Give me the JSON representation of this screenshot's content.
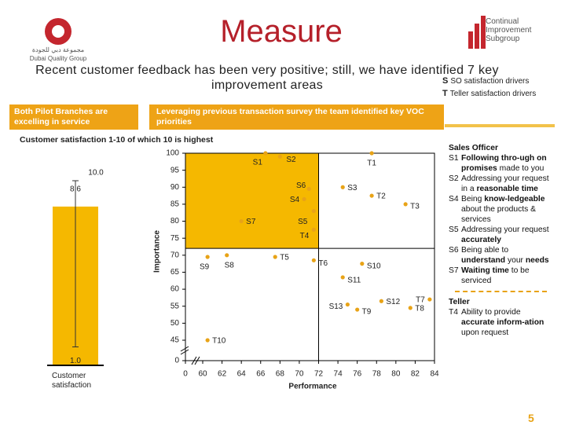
{
  "header": {
    "logo_left_arabic": "مجموعة دبي للجودة",
    "logo_left": "Dubai Quality Group",
    "logo_right": "Continual Improvement Subgroup",
    "title": "Measure",
    "subtitle": "Recent customer feedback has been very positive; still, we have identified 7 key improvement areas"
  },
  "legend": [
    {
      "key": "S",
      "text": "SO satisfaction drivers"
    },
    {
      "key": "T",
      "text": "Teller satisfaction drivers"
    }
  ],
  "panels": {
    "left_header": "Both Pilot Branches are excelling in service",
    "middle_header": "Leveraging previous transaction survey the team identified key VOC priorities"
  },
  "chart_data": [
    {
      "type": "bar",
      "title": "Customer satisfaction 1-10 of which 10 is highest",
      "categories": [
        "Customer satisfaction"
      ],
      "values": [
        8.6
      ],
      "color": "#f5b800",
      "ylim": [
        0,
        10
      ],
      "error_range": [
        {
          "value": 1,
          "label": "1.0"
        },
        {
          "value": 10,
          "label": "10.0"
        }
      ]
    },
    {
      "type": "scatter",
      "x_label": "Performance",
      "y_label": "Importance",
      "color": "#e8a317",
      "quadrant_color": "#f5b800",
      "xlim": [
        0,
        84
      ],
      "ylim": [
        0,
        100
      ],
      "x_break": [
        0,
        60
      ],
      "y_break": [
        0,
        45
      ],
      "quadrant_lines": {
        "x": 72,
        "y": 72
      },
      "xticks": [
        0,
        60,
        62,
        64,
        66,
        68,
        70,
        72,
        74,
        76,
        78,
        80,
        82,
        84
      ],
      "yticks": [
        0,
        45,
        50,
        55,
        60,
        65,
        70,
        75,
        80,
        85,
        90,
        95,
        100
      ],
      "points": [
        {
          "label": "S1",
          "x": 66.5,
          "y": 100
        },
        {
          "label": "S2",
          "x": 68,
          "y": 99
        },
        {
          "label": "T1",
          "x": 77.5,
          "y": 100
        },
        {
          "label": "S6",
          "x": 71,
          "y": 89.5
        },
        {
          "label": "S4",
          "x": 70.5,
          "y": 86.5
        },
        {
          "label": "S3",
          "x": 74.5,
          "y": 90
        },
        {
          "label": "T2",
          "x": 77.5,
          "y": 87.5
        },
        {
          "label": "T3",
          "x": 81,
          "y": 85
        },
        {
          "label": "S7",
          "x": 64,
          "y": 80
        },
        {
          "label": "S5",
          "x": 71.5,
          "y": 83
        },
        {
          "label": "T4",
          "x": 71.5,
          "y": 77.5
        },
        {
          "label": "S9",
          "x": 60.5,
          "y": 69.5
        },
        {
          "label": "S8",
          "x": 62.5,
          "y": 70
        },
        {
          "label": "T5",
          "x": 67.5,
          "y": 69.5
        },
        {
          "label": "T6",
          "x": 71.5,
          "y": 68.5
        },
        {
          "label": "S10",
          "x": 76.5,
          "y": 67.5
        },
        {
          "label": "S11",
          "x": 74.5,
          "y": 63.5
        },
        {
          "label": "S13",
          "x": 75,
          "y": 55.5
        },
        {
          "label": "S12",
          "x": 78.5,
          "y": 56.5
        },
        {
          "label": "T7",
          "x": 83.5,
          "y": 57
        },
        {
          "label": "T9",
          "x": 76,
          "y": 54
        },
        {
          "label": "T8",
          "x": 81.5,
          "y": 54.5
        },
        {
          "label": "T10",
          "x": 60.5,
          "y": 45
        }
      ]
    }
  ],
  "sidebar": {
    "groups": [
      {
        "heading": "Sales Officer",
        "items": [
          {
            "code": "S1",
            "segments": [
              {
                "text": "Following thro-ugh on promises",
                "bold": true
              },
              "made to you"
            ]
          },
          {
            "code": "S2",
            "segments": [
              "Addressing your request in a",
              {
                "text": "reasonable time",
                "bold": true
              }
            ]
          },
          {
            "code": "S4",
            "segments": [
              "Being",
              {
                "text": "know-ledgeable",
                "bold": true
              },
              "about the products & services"
            ]
          },
          {
            "code": "S5",
            "segments": [
              "Addressing your request",
              {
                "text": "accurately",
                "bold": true
              }
            ]
          },
          {
            "code": "S6",
            "segments": [
              "Being able to",
              {
                "text": "understand",
                "bold": true
              },
              "your",
              {
                "text": "needs",
                "bold": true
              }
            ]
          },
          {
            "code": "S7",
            "segments": [
              {
                "text": "Waiting time",
                "bold": true
              },
              "to be serviced"
            ]
          }
        ]
      },
      {
        "heading": "Teller",
        "items": [
          {
            "code": "T4",
            "segments": [
              "Ability to provide",
              {
                "text": "accurate inform-ation",
                "bold": true
              },
              "upon request"
            ]
          }
        ]
      }
    ]
  },
  "page_number": "5"
}
